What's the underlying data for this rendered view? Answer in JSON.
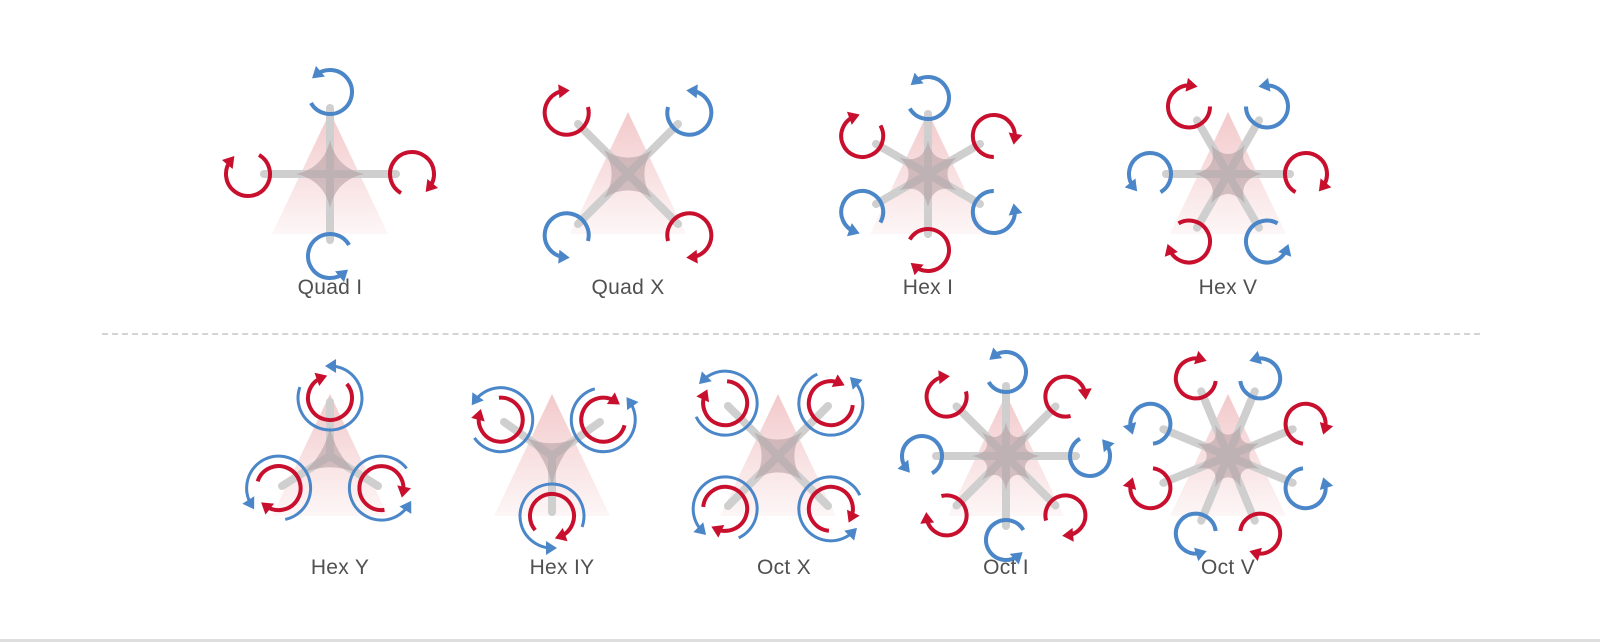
{
  "colors": {
    "cw_arrow": "#c8102e",
    "ccw_arrow": "#4a86c8",
    "arm": "#cfcfcf",
    "body": "#b09a9e",
    "direction_fan": "#f2c6c8",
    "label": "#505050"
  },
  "frames": [
    {
      "id": "quad-i",
      "label": "Quad I",
      "type": "single",
      "directions": [
        "ccw",
        "cw",
        "ccw",
        "cw"
      ]
    },
    {
      "id": "quad-x",
      "label": "Quad X",
      "type": "single",
      "directions": [
        "cw",
        "ccw",
        "cw",
        "ccw"
      ]
    },
    {
      "id": "hex-i",
      "label": "Hex I",
      "type": "single",
      "directions": [
        "ccw",
        "cw",
        "ccw",
        "cw",
        "ccw",
        "cw"
      ]
    },
    {
      "id": "hex-v",
      "label": "Hex V",
      "type": "single",
      "directions": [
        "cw",
        "ccw",
        "cw",
        "ccw",
        "cw",
        "ccw"
      ]
    },
    {
      "id": "hex-y",
      "label": "Hex Y",
      "type": "coaxial",
      "directions": [
        "cw",
        "cw",
        "cw"
      ]
    },
    {
      "id": "hex-iy",
      "label": "Hex IY",
      "type": "coaxial",
      "directions": [
        "cw",
        "cw",
        "cw"
      ]
    },
    {
      "id": "oct-x",
      "label": "Oct X",
      "type": "coaxial",
      "directions": [
        "cw",
        "cw",
        "cw",
        "cw"
      ]
    },
    {
      "id": "oct-i",
      "label": "Oct I",
      "type": "single",
      "directions": [
        "ccw",
        "cw",
        "ccw",
        "cw",
        "ccw",
        "cw",
        "ccw",
        "cw"
      ]
    },
    {
      "id": "oct-v",
      "label": "Oct V",
      "type": "single",
      "directions": [
        "cw",
        "ccw",
        "cw",
        "ccw",
        "cw",
        "ccw",
        "cw",
        "ccw"
      ]
    }
  ]
}
